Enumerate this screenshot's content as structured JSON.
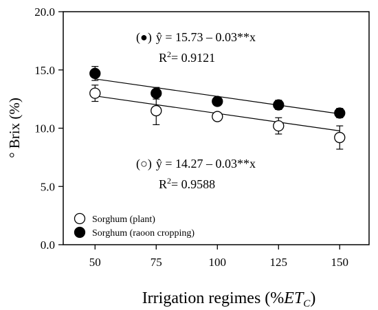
{
  "chart_data": {
    "type": "scatter",
    "ylabel": "° Brix (%)",
    "xlabel": {
      "main": "Irrigation regimes (%",
      "italic": "ET",
      "sub": "C",
      "close": ")"
    },
    "x": [
      50,
      75,
      100,
      125,
      150
    ],
    "xlim": [
      37,
      162
    ],
    "ylim": [
      0,
      20
    ],
    "xticks": [
      "50",
      "75",
      "100",
      "125",
      "150"
    ],
    "yticks": [
      "0.0",
      "5.0",
      "10.0",
      "15.0",
      "20.0"
    ],
    "grid": false,
    "legend_position": "bottom-left",
    "series": [
      {
        "name": "Sorghum (plant)",
        "marker": "open-circle",
        "values": [
          13.0,
          11.5,
          11.0,
          10.2,
          9.2
        ],
        "errors": [
          0.7,
          1.2,
          0.3,
          0.7,
          1.0
        ],
        "fit": {
          "intercept": 14.27,
          "slope": -0.03
        },
        "equation": {
          "symbol": "(○)",
          "formula": "ŷ = 14.27 – 0.03**x",
          "r2_label": "R",
          "r2_exp": "2",
          "r2_value": "= 0.9588"
        }
      },
      {
        "name": "Sorghum (raoon cropping)",
        "marker": "filled-circle",
        "values": [
          14.7,
          13.0,
          12.3,
          12.0,
          11.3
        ],
        "errors": [
          0.6,
          0.5,
          0.3,
          0.4,
          0.4
        ],
        "fit": {
          "intercept": 15.73,
          "slope": -0.03
        },
        "equation": {
          "symbol": "(●)",
          "formula": "ŷ = 15.73 – 0.03**x",
          "r2_label": "R",
          "r2_exp": "2",
          "r2_value": "= 0.9121"
        }
      }
    ],
    "colors": {
      "ink": "#000000",
      "paper": "#ffffff",
      "fill": "#000000"
    }
  }
}
